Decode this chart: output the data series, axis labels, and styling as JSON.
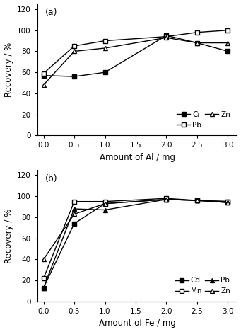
{
  "panel_a": {
    "x": [
      0.0,
      0.5,
      1.0,
      2.0,
      2.5,
      3.0
    ],
    "Cr": [
      57,
      56,
      60,
      95,
      88,
      80
    ],
    "Pb": [
      59,
      85,
      90,
      94,
      98,
      100
    ],
    "Zn": [
      48,
      80,
      83,
      93,
      88,
      88
    ],
    "xlabel": "Amount of Al / mg",
    "ylabel": "Recovery / %",
    "label": "(a)",
    "ylim": [
      0,
      125
    ],
    "yticks": [
      0,
      20,
      40,
      60,
      80,
      100,
      120
    ]
  },
  "panel_b": {
    "x": [
      0.0,
      0.5,
      1.0,
      2.0,
      2.5,
      3.0
    ],
    "Cd": [
      13,
      74,
      93,
      97,
      96,
      95
    ],
    "Mn": [
      22,
      95,
      95,
      98,
      96,
      95
    ],
    "Pb": [
      13,
      88,
      87,
      97,
      96,
      94
    ],
    "Zn": [
      40,
      83,
      93,
      97,
      96,
      94
    ],
    "xlabel": "Amount of Fe / mg",
    "ylabel": "Recovery / %",
    "label": "(b)",
    "ylim": [
      0,
      125
    ],
    "yticks": [
      0,
      20,
      40,
      60,
      80,
      100,
      120
    ]
  },
  "color": "black",
  "legend_fontsize": 7.5,
  "axis_fontsize": 8.5,
  "tick_fontsize": 7.5,
  "label_fontsize": 9
}
